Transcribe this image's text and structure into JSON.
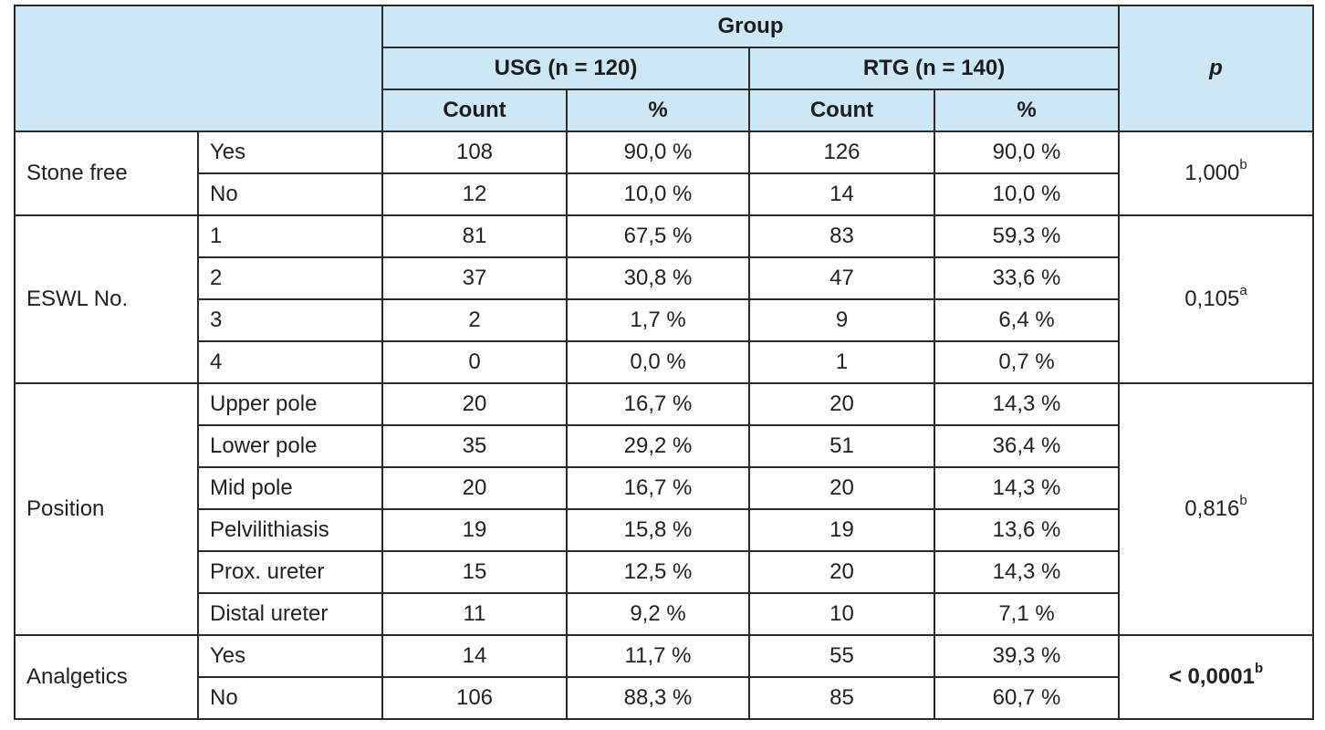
{
  "header": {
    "group_label": "Group",
    "usg_label": "USG (n = 120)",
    "rtg_label": "RTG (n = 140)",
    "p_label": "p",
    "count_label": "Count",
    "percent_label": "%"
  },
  "sections": [
    {
      "label": "Stone free",
      "p": {
        "value": "1,000",
        "sup": "b",
        "bold": false
      },
      "rows": [
        {
          "label": "Yes",
          "usg_count": "108",
          "usg_pct": "90,0 %",
          "rtg_count": "126",
          "rtg_pct": "90,0 %"
        },
        {
          "label": "No",
          "usg_count": "12",
          "usg_pct": "10,0 %",
          "rtg_count": "14",
          "rtg_pct": "10,0 %"
        }
      ]
    },
    {
      "label": "ESWL No.",
      "p": {
        "value": "0,105",
        "sup": "a",
        "bold": false
      },
      "rows": [
        {
          "label": "1",
          "usg_count": "81",
          "usg_pct": "67,5 %",
          "rtg_count": "83",
          "rtg_pct": "59,3 %"
        },
        {
          "label": "2",
          "usg_count": "37",
          "usg_pct": "30,8 %",
          "rtg_count": "47",
          "rtg_pct": "33,6 %"
        },
        {
          "label": "3",
          "usg_count": "2",
          "usg_pct": "1,7 %",
          "rtg_count": "9",
          "rtg_pct": "6,4 %"
        },
        {
          "label": "4",
          "usg_count": "0",
          "usg_pct": "0,0 %",
          "rtg_count": "1",
          "rtg_pct": "0,7 %"
        }
      ]
    },
    {
      "label": "Position",
      "p": {
        "value": "0,816",
        "sup": "b",
        "bold": false
      },
      "rows": [
        {
          "label": "Upper pole",
          "usg_count": "20",
          "usg_pct": "16,7 %",
          "rtg_count": "20",
          "rtg_pct": "14,3 %"
        },
        {
          "label": "Lower pole",
          "usg_count": "35",
          "usg_pct": "29,2 %",
          "rtg_count": "51",
          "rtg_pct": "36,4 %"
        },
        {
          "label": "Mid pole",
          "usg_count": "20",
          "usg_pct": "16,7 %",
          "rtg_count": "20",
          "rtg_pct": "14,3 %"
        },
        {
          "label": "Pelvilithiasis",
          "usg_count": "19",
          "usg_pct": "15,8 %",
          "rtg_count": "19",
          "rtg_pct": "13,6 %"
        },
        {
          "label": "Prox. ureter",
          "usg_count": "15",
          "usg_pct": "12,5 %",
          "rtg_count": "20",
          "rtg_pct": "14,3 %"
        },
        {
          "label": "Distal ureter",
          "usg_count": "11",
          "usg_pct": "9,2 %",
          "rtg_count": "10",
          "rtg_pct": "7,1 %"
        }
      ]
    },
    {
      "label": "Analgetics",
      "p": {
        "value": "< 0,0001",
        "sup": "b",
        "bold": true
      },
      "rows": [
        {
          "label": "Yes",
          "usg_count": "14",
          "usg_pct": "11,7 %",
          "rtg_count": "55",
          "rtg_pct": "39,3 %"
        },
        {
          "label": "No",
          "usg_count": "106",
          "usg_pct": "88,3 %",
          "rtg_count": "85",
          "rtg_pct": "60,7 %"
        }
      ]
    }
  ]
}
